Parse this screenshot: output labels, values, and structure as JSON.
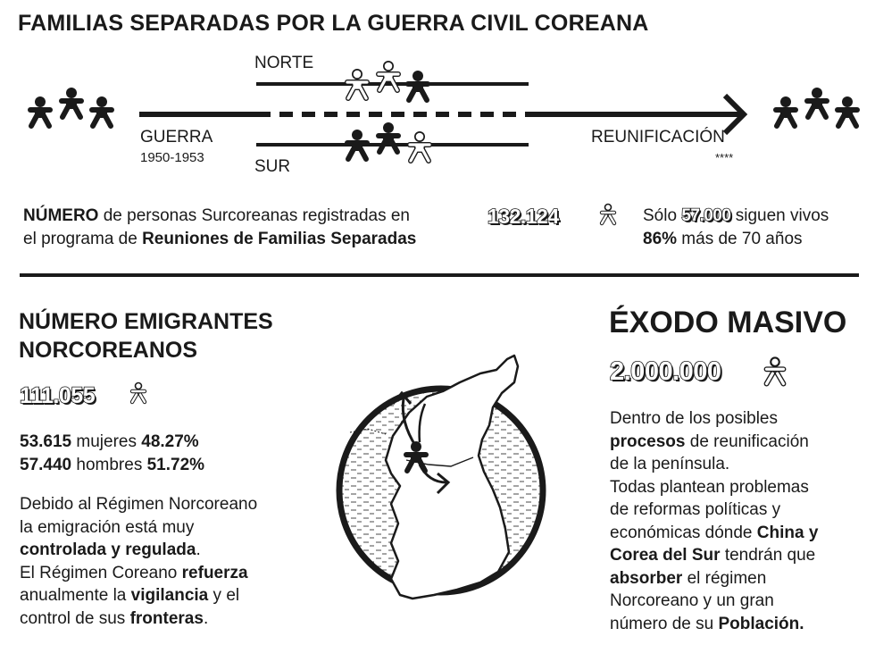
{
  "header": {
    "title": "FAMILIAS SEPARADAS POR LA GUERRA CIVIL COREANA"
  },
  "timeline": {
    "north_label": "NORTE",
    "south_label": "SUR",
    "war_label": "GUERRA",
    "war_years": "1950-1953",
    "reunification_label": "REUNIFICACIÓN",
    "reunification_stars": "****"
  },
  "registry": {
    "desc_bold1": "NÚMERO",
    "desc_text1": " de personas Surcoreanas registradas en",
    "desc_text2": "el programa de ",
    "desc_bold2": "Reuniones de Familias Separadas",
    "count": "132.124",
    "alive_prefix": "Sólo ",
    "alive_count": "57.000",
    "alive_suffix": " siguen vivos",
    "age_bold": "86%",
    "age_text": " más de 70 años"
  },
  "emigrants": {
    "heading_line1": "NÚMERO EMIGRANTES",
    "heading_line2": "NORCOREANOS",
    "total": "111.055",
    "women_count": "53.615",
    "women_label": " mujeres ",
    "women_pct": "48.27%",
    "men_count": "57.440",
    "men_label": " hombres ",
    "men_pct": "51.72%",
    "p1": "Debido al Régimen Norcoreano",
    "p2": "la emigración está muy",
    "p3_bold": "controlada y regulada",
    "p3_tail": ".",
    "p4_a": "El Régimen Coreano ",
    "p4_bold": "refuerza",
    "p5_a": "anualmente la ",
    "p5_bold": "vigilancia",
    "p5_b": " y el",
    "p6_a": "control de sus ",
    "p6_bold": "fronteras",
    "p6_b": "."
  },
  "exodus": {
    "heading": "ÉXODO MASIVO",
    "total": "2.000.000",
    "l1": "Dentro de los posibles",
    "l2_bold": "procesos",
    "l2_b": " de reunificación",
    "l3": "de la península.",
    "l4": "Todas plantean problemas",
    "l5": "de reformas políticas y",
    "l6_a": "económicas dónde ",
    "l6_bold": "China y",
    "l7_bold": "Corea del Sur",
    "l7_b": " tendrán que",
    "l8_bold": "absorber",
    "l8_b": " el régimen",
    "l9": "Norcoreano y un gran",
    "l10_a": "número de su ",
    "l10_bold": "Población."
  },
  "icons": {
    "person_solid": "person-solid-icon",
    "person_outline": "person-outline-icon",
    "korea_map": "korea-map-icon",
    "ink": "#1a1a1a"
  }
}
